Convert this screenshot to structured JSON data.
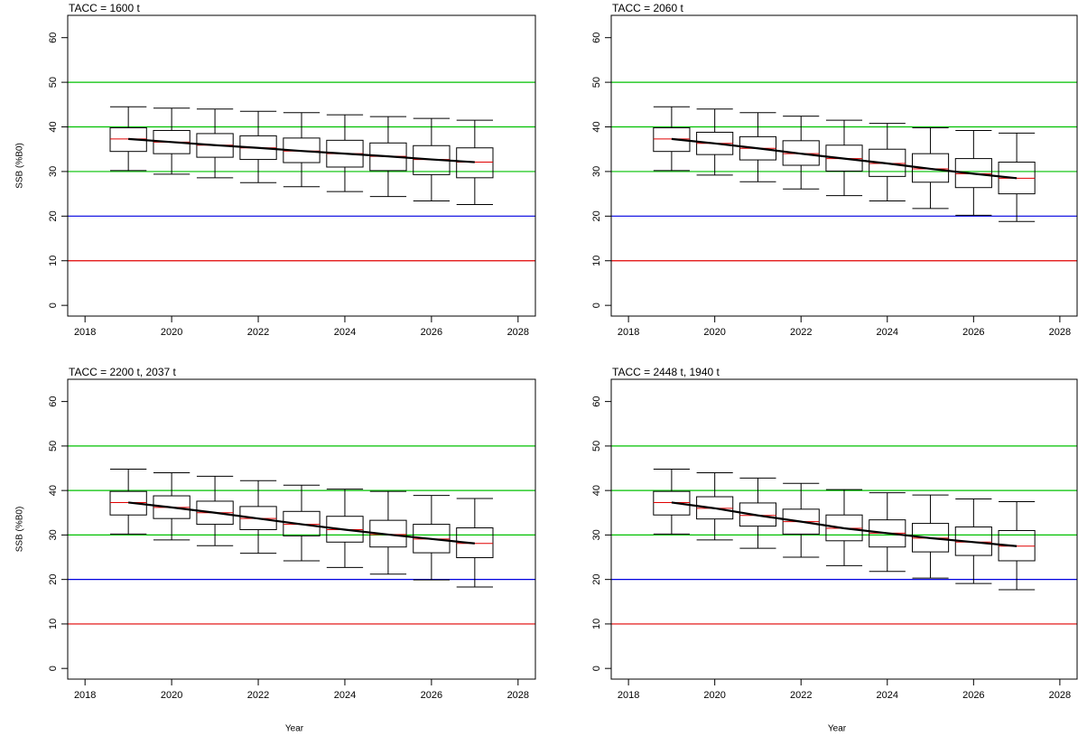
{
  "chart_data": [
    {
      "type": "box",
      "title": "TACC = 1600 t",
      "ylabel": "SSB (%B0)",
      "x": [
        2019,
        2020,
        2021,
        2022,
        2023,
        2024,
        2025,
        2026,
        2027
      ],
      "high": [
        44.5,
        44.2,
        44.0,
        43.5,
        43.2,
        42.7,
        42.3,
        41.9,
        41.5
      ],
      "q3": [
        39.8,
        39.2,
        38.5,
        38.0,
        37.5,
        37.0,
        36.4,
        35.8,
        35.3
      ],
      "median": [
        37.3,
        36.6,
        35.9,
        35.3,
        34.6,
        34.0,
        33.4,
        32.7,
        32.1
      ],
      "q1": [
        34.5,
        34.0,
        33.2,
        32.7,
        32.0,
        31.0,
        30.2,
        29.3,
        28.6
      ],
      "low": [
        30.2,
        29.4,
        28.6,
        27.5,
        26.6,
        25.5,
        24.4,
        23.4,
        22.6
      ],
      "xlim": [
        2017.6,
        2028.4
      ],
      "xticks": [
        2018,
        2020,
        2022,
        2024,
        2026,
        2028
      ],
      "ylim": [
        -2.4,
        65
      ],
      "yticks": [
        0,
        10,
        20,
        30,
        40,
        50,
        60
      ],
      "hlines": [
        {
          "value": 10,
          "color": "#e00000"
        },
        {
          "value": 20,
          "color": "#0000e0"
        },
        {
          "value": 30,
          "color": "#00c000"
        },
        {
          "value": 40,
          "color": "#00c000"
        },
        {
          "value": 50,
          "color": "#00c000"
        }
      ],
      "median_color": "#e00000",
      "line_color": "#000000"
    },
    {
      "type": "box",
      "title": "TACC = 2060 t",
      "x": [
        2019,
        2020,
        2021,
        2022,
        2023,
        2024,
        2025,
        2026,
        2027
      ],
      "high": [
        44.5,
        44.0,
        43.2,
        42.4,
        41.5,
        40.8,
        39.8,
        39.2,
        38.6
      ],
      "q3": [
        39.8,
        38.8,
        37.8,
        36.9,
        35.9,
        35.0,
        34.0,
        32.9,
        32.1
      ],
      "median": [
        37.3,
        36.3,
        35.2,
        34.0,
        32.9,
        31.8,
        30.6,
        29.5,
        28.5
      ],
      "q1": [
        34.5,
        33.8,
        32.6,
        31.4,
        30.1,
        28.9,
        27.6,
        26.4,
        25.0
      ],
      "low": [
        30.2,
        29.2,
        27.7,
        26.1,
        24.6,
        23.4,
        21.7,
        20.2,
        18.8
      ],
      "xlim": [
        2017.6,
        2028.4
      ],
      "xticks": [
        2018,
        2020,
        2022,
        2024,
        2026,
        2028
      ],
      "ylim": [
        -2.4,
        65
      ],
      "yticks": [
        0,
        10,
        20,
        30,
        40,
        50,
        60
      ],
      "hlines": [
        {
          "value": 10,
          "color": "#e00000"
        },
        {
          "value": 20,
          "color": "#0000e0"
        },
        {
          "value": 30,
          "color": "#00c000"
        },
        {
          "value": 40,
          "color": "#00c000"
        },
        {
          "value": 50,
          "color": "#00c000"
        }
      ],
      "median_color": "#e00000",
      "line_color": "#000000"
    },
    {
      "type": "box",
      "title": "TACC = 2200 t, 2037 t",
      "ylabel": "SSB (%B0)",
      "xlabel": "Year",
      "x": [
        2019,
        2020,
        2021,
        2022,
        2023,
        2024,
        2025,
        2026,
        2027
      ],
      "high": [
        44.8,
        44.0,
        43.2,
        42.2,
        41.2,
        40.3,
        39.8,
        38.9,
        38.2
      ],
      "q3": [
        39.8,
        38.8,
        37.6,
        36.4,
        35.3,
        34.2,
        33.3,
        32.4,
        31.6
      ],
      "median": [
        37.3,
        36.2,
        35.0,
        33.7,
        32.4,
        31.2,
        30.1,
        29.1,
        28.1
      ],
      "q1": [
        34.5,
        33.7,
        32.4,
        31.2,
        29.8,
        28.4,
        27.3,
        26.0,
        24.9
      ],
      "low": [
        30.2,
        28.9,
        27.6,
        25.9,
        24.2,
        22.7,
        21.2,
        19.9,
        18.3
      ],
      "xlim": [
        2017.6,
        2028.4
      ],
      "xticks": [
        2018,
        2020,
        2022,
        2024,
        2026,
        2028
      ],
      "ylim": [
        -2.4,
        65
      ],
      "yticks": [
        0,
        10,
        20,
        30,
        40,
        50,
        60
      ],
      "hlines": [
        {
          "value": 10,
          "color": "#e00000"
        },
        {
          "value": 20,
          "color": "#0000e0"
        },
        {
          "value": 30,
          "color": "#00c000"
        },
        {
          "value": 40,
          "color": "#00c000"
        },
        {
          "value": 50,
          "color": "#00c000"
        }
      ],
      "median_color": "#e00000",
      "line_color": "#000000"
    },
    {
      "type": "box",
      "title": "TACC = 2448 t, 1940 t",
      "xlabel": "Year",
      "x": [
        2019,
        2020,
        2021,
        2022,
        2023,
        2024,
        2025,
        2026,
        2027
      ],
      "high": [
        44.8,
        44.0,
        42.8,
        41.6,
        40.2,
        39.5,
        39.0,
        38.1,
        37.5
      ],
      "q3": [
        39.8,
        38.6,
        37.2,
        35.8,
        34.5,
        33.4,
        32.6,
        31.8,
        31.0
      ],
      "median": [
        37.3,
        36.0,
        34.4,
        33.0,
        31.5,
        30.4,
        29.3,
        28.4,
        27.5
      ],
      "q1": [
        34.5,
        33.6,
        32.0,
        30.2,
        28.7,
        27.3,
        26.2,
        25.4,
        24.2
      ],
      "low": [
        30.2,
        28.9,
        27.0,
        25.0,
        23.1,
        21.8,
        20.3,
        19.1,
        17.7
      ],
      "xlim": [
        2017.6,
        2028.4
      ],
      "xticks": [
        2018,
        2020,
        2022,
        2024,
        2026,
        2028
      ],
      "ylim": [
        -2.4,
        65
      ],
      "yticks": [
        0,
        10,
        20,
        30,
        40,
        50,
        60
      ],
      "hlines": [
        {
          "value": 10,
          "color": "#e00000"
        },
        {
          "value": 20,
          "color": "#0000e0"
        },
        {
          "value": 30,
          "color": "#00c000"
        },
        {
          "value": 40,
          "color": "#00c000"
        },
        {
          "value": 50,
          "color": "#00c000"
        }
      ],
      "median_color": "#e00000",
      "line_color": "#000000"
    }
  ]
}
